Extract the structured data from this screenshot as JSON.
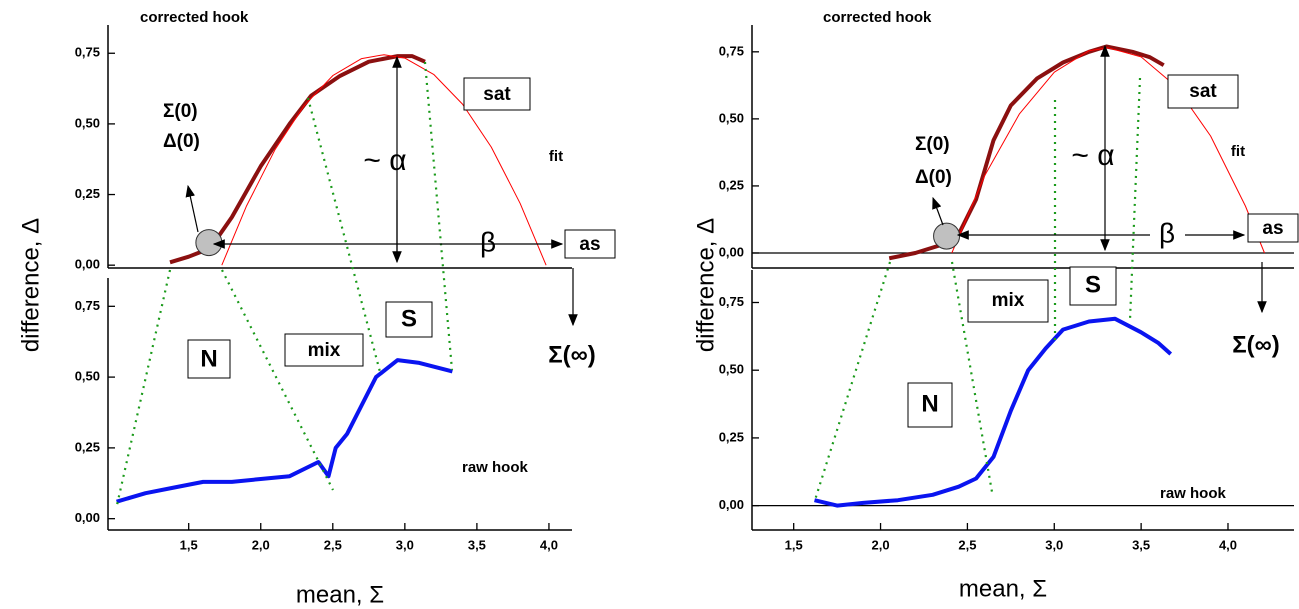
{
  "chart_data": [
    {
      "type": "line",
      "title": "corrected hook",
      "ylabel": "difference, Δ",
      "annotations": [
        "Σ(0)",
        "Δ(0)",
        "~ α",
        "β",
        "fit",
        "sat",
        "as",
        "Σ(∞)"
      ],
      "xlim": [
        0.94,
        4.16
      ],
      "ylim": [
        -0.01,
        0.85
      ],
      "yticks": [
        {
          "value": 0,
          "label": "0,00"
        },
        {
          "value": 0.25,
          "label": "0,25"
        },
        {
          "value": 0.5,
          "label": "0,50"
        },
        {
          "value": 0.75,
          "label": "0,75"
        }
      ],
      "start_point": {
        "x": 1.64,
        "y": 0.08,
        "color": "#c0c0c0"
      },
      "zero_line": false,
      "series": [
        {
          "color": "#8b1010",
          "width": 4,
          "x": [
            1.37,
            1.5,
            1.65,
            1.8,
            2.0,
            2.2,
            2.35,
            2.55,
            2.75,
            2.95,
            3.05,
            3.14
          ],
          "values": [
            0.01,
            0.03,
            0.06,
            0.17,
            0.35,
            0.5,
            0.6,
            0.67,
            0.72,
            0.74,
            0.74,
            0.72
          ]
        },
        {
          "color": "#ff0000",
          "width": 1,
          "x": [
            1.73,
            1.9,
            2.1,
            2.3,
            2.5,
            2.7,
            2.855,
            3.0,
            3.2,
            3.4,
            3.6,
            3.8,
            3.98
          ],
          "values": [
            0,
            0.208,
            0.41,
            0.564,
            0.671,
            0.731,
            0.745,
            0.733,
            0.675,
            0.57,
            0.418,
            0.219,
            0
          ]
        }
      ]
    },
    {
      "type": "line",
      "title": "raw hook",
      "xlabel": "mean, Σ",
      "annotations": [
        "N",
        "mix",
        "S"
      ],
      "xlim": [
        0.94,
        4.16
      ],
      "ylim": [
        -0.04,
        0.85
      ],
      "yticks": [
        {
          "value": 0,
          "label": "0,00"
        },
        {
          "value": 0.25,
          "label": "0,25"
        },
        {
          "value": 0.5,
          "label": "0,50"
        },
        {
          "value": 0.75,
          "label": "0,75"
        }
      ],
      "xticks": [
        {
          "value": 1.5,
          "label": "1,5"
        },
        {
          "value": 2,
          "label": "2,0"
        },
        {
          "value": 2.5,
          "label": "2,5"
        },
        {
          "value": 3,
          "label": "3,0"
        },
        {
          "value": 3.5,
          "label": "3,5"
        },
        {
          "value": 4,
          "label": "4,0"
        }
      ],
      "zero_line": false,
      "series": [
        {
          "color": "#0a14f0",
          "width": 4,
          "x": [
            1.0,
            1.2,
            1.4,
            1.6,
            1.8,
            2.0,
            2.2,
            2.4,
            2.47,
            2.52,
            2.6,
            2.7,
            2.8,
            2.95,
            3.1,
            3.33
          ],
          "values": [
            0.06,
            0.09,
            0.11,
            0.13,
            0.13,
            0.14,
            0.15,
            0.2,
            0.15,
            0.25,
            0.3,
            0.4,
            0.5,
            0.56,
            0.55,
            0.52
          ]
        }
      ]
    },
    {
      "type": "line",
      "title": "corrected hook",
      "ylabel": "difference, Δ",
      "annotations": [
        "Σ(0)",
        "Δ(0)",
        "~ α",
        "β",
        "fit",
        "sat",
        "as",
        "Σ(∞)"
      ],
      "xlim": [
        1.26,
        4.38
      ],
      "ylim": [
        -0.056,
        0.85
      ],
      "yticks": [
        {
          "value": 0,
          "label": "0,00"
        },
        {
          "value": 0.25,
          "label": "0,25"
        },
        {
          "value": 0.5,
          "label": "0,50"
        },
        {
          "value": 0.75,
          "label": "0,75"
        }
      ],
      "start_point": {
        "x": 2.38,
        "y": 0.063,
        "color": "#c0c0c0"
      },
      "zero_line": true,
      "series": [
        {
          "color": "#8b1010",
          "width": 4,
          "x": [
            2.05,
            2.2,
            2.35,
            2.45,
            2.55,
            2.65,
            2.75,
            2.9,
            3.05,
            3.2,
            3.3,
            3.45,
            3.55,
            3.63
          ],
          "values": [
            -0.02,
            0,
            0.03,
            0.07,
            0.2,
            0.42,
            0.55,
            0.65,
            0.71,
            0.75,
            0.77,
            0.75,
            0.73,
            0.7
          ]
        },
        {
          "color": "#ff0000",
          "width": 1,
          "x": [
            2.41,
            2.6,
            2.8,
            3.0,
            3.2,
            3.31,
            3.5,
            3.7,
            3.9,
            4.1,
            4.21
          ],
          "values": [
            0,
            0.289,
            0.519,
            0.674,
            0.754,
            0.765,
            0.731,
            0.621,
            0.436,
            0.175,
            0
          ]
        }
      ]
    },
    {
      "type": "line",
      "title": "raw hook",
      "xlabel": "mean, Σ",
      "annotations": [
        "N",
        "mix",
        "S"
      ],
      "xlim": [
        1.26,
        4.38
      ],
      "ylim": [
        -0.09,
        0.87
      ],
      "yticks": [
        {
          "value": 0,
          "label": "0,00"
        },
        {
          "value": 0.25,
          "label": "0,25"
        },
        {
          "value": 0.5,
          "label": "0,50"
        },
        {
          "value": 0.75,
          "label": "0,75"
        }
      ],
      "xticks": [
        {
          "value": 1.5,
          "label": "1,5"
        },
        {
          "value": 2,
          "label": "2,0"
        },
        {
          "value": 2.5,
          "label": "2,5"
        },
        {
          "value": 3,
          "label": "3,0"
        },
        {
          "value": 3.5,
          "label": "3,5"
        },
        {
          "value": 4,
          "label": "4,0"
        }
      ],
      "zero_line": true,
      "series": [
        {
          "color": "#0a14f0",
          "width": 4,
          "x": [
            1.62,
            1.75,
            1.9,
            2.1,
            2.3,
            2.45,
            2.55,
            2.65,
            2.75,
            2.85,
            2.95,
            3.05,
            3.2,
            3.35,
            3.5,
            3.6,
            3.67
          ],
          "values": [
            0.02,
            0,
            0.01,
            0.02,
            0.04,
            0.07,
            0.1,
            0.18,
            0.35,
            0.5,
            0.58,
            0.65,
            0.68,
            0.69,
            0.64,
            0.6,
            0.56
          ]
        }
      ]
    }
  ]
}
